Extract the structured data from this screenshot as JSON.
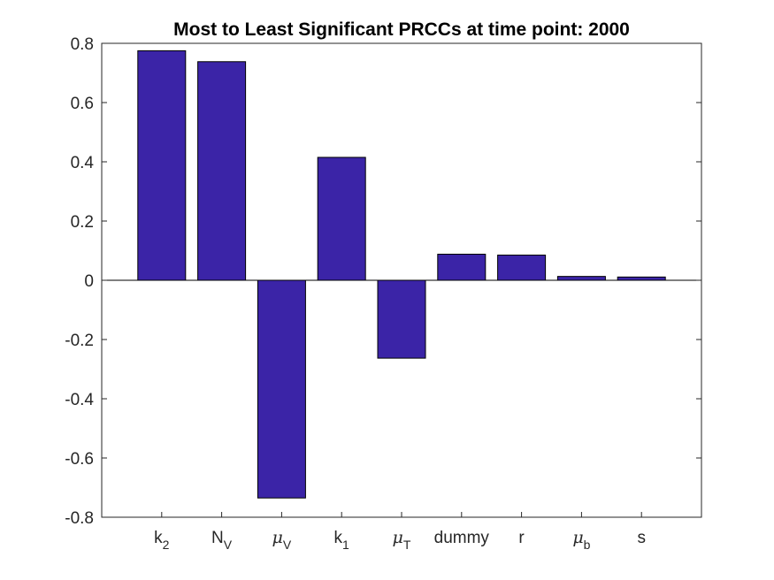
{
  "chart_data": {
    "type": "bar",
    "title": "Most to Least Significant PRCCs at time point: 2000",
    "categories": [
      {
        "base": "k",
        "sub": "2",
        "greek": false
      },
      {
        "base": "N",
        "sub": "V",
        "greek": false
      },
      {
        "base": "μ",
        "sub": "V",
        "greek": true
      },
      {
        "base": "k",
        "sub": "1",
        "greek": false
      },
      {
        "base": "μ",
        "sub": "T",
        "greek": true
      },
      {
        "base": "dummy",
        "sub": "",
        "greek": false
      },
      {
        "base": "r",
        "sub": "",
        "greek": false
      },
      {
        "base": "μ",
        "sub": "b",
        "greek": true
      },
      {
        "base": "s",
        "sub": "",
        "greek": false
      }
    ],
    "values": [
      0.775,
      0.738,
      -0.735,
      0.415,
      -0.263,
      0.088,
      0.085,
      0.013,
      0.011
    ],
    "ylim": [
      -0.8,
      0.8
    ],
    "yticks": [
      "-0.8",
      "-0.6",
      "-0.4",
      "-0.2",
      "0",
      "0.2",
      "0.4",
      "0.6",
      "0.8"
    ],
    "ytick_values": [
      -0.8,
      -0.6,
      -0.4,
      -0.2,
      0,
      0.2,
      0.4,
      0.6,
      0.8
    ],
    "bar_color": "#3b24a7",
    "grid": false
  }
}
